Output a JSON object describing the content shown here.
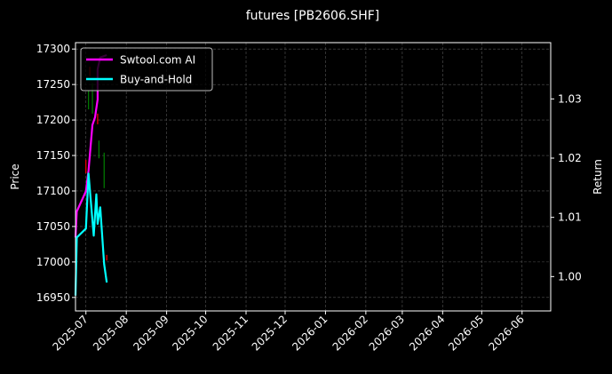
{
  "chart_data": {
    "type": "line",
    "title": "futures [PB2606.SHF]",
    "xlabel": "",
    "ylabel_left": "Price",
    "ylabel_right": "Return",
    "xlim": [
      "2025-06-23",
      "2026-06-23"
    ],
    "ylim_left": [
      16931,
      17309
    ],
    "ylim_right": [
      0.9942,
      1.0395
    ],
    "x_ticks": [
      "2025-07",
      "2025-08",
      "2025-09",
      "2025-10",
      "2025-11",
      "2025-12",
      "2026-01",
      "2026-02",
      "2026-03",
      "2026-04",
      "2026-05",
      "2026-06"
    ],
    "y_ticks_left": [
      16950,
      17000,
      17050,
      17100,
      17150,
      17200,
      17250,
      17300
    ],
    "y_ticks_right": [
      1.0,
      1.01,
      1.02,
      1.03
    ],
    "grid": true,
    "legend_placement": "top-left",
    "candles": [
      {
        "date": "2025-07-01",
        "low": 17125,
        "high": 17144,
        "color": "#ff0000"
      },
      {
        "date": "2025-07-03",
        "low": 17215,
        "high": 17241,
        "color": "#008000"
      },
      {
        "date": "2025-07-04",
        "low": 17262,
        "high": 17275,
        "color": "#ff0000"
      },
      {
        "date": "2025-07-06",
        "low": 17209,
        "high": 17252,
        "color": "#008000"
      },
      {
        "date": "2025-07-10",
        "low": 17194,
        "high": 17209,
        "color": "#ff0000"
      },
      {
        "date": "2025-07-11",
        "low": 17146,
        "high": 17171,
        "color": "#008000"
      },
      {
        "date": "2025-07-15",
        "low": 17104,
        "high": 17154,
        "color": "#008000"
      },
      {
        "date": "2025-07-17",
        "low": 17002,
        "high": 17010,
        "color": "#ff0000"
      }
    ],
    "series": [
      {
        "name": "Swtool.com AI",
        "color": "#ff00ff",
        "axis": "right",
        "x": [
          "2025-06-23",
          "2025-06-24",
          "2025-07-01",
          "2025-07-03",
          "2025-07-06",
          "2025-07-08",
          "2025-07-10",
          "2025-07-10",
          "2025-07-12",
          "2025-07-17"
        ],
        "values": [
          1.0066,
          1.011,
          1.0144,
          1.0179,
          1.0256,
          1.0269,
          1.0299,
          1.035,
          1.037,
          1.0374
        ]
      },
      {
        "name": "Buy-and-Hold",
        "color": "#00ffff",
        "axis": "right",
        "x": [
          "2025-06-23",
          "2025-06-24",
          "2025-07-01",
          "2025-07-03",
          "2025-07-07",
          "2025-07-09",
          "2025-07-10",
          "2025-07-12",
          "2025-07-15",
          "2025-07-17"
        ],
        "values": [
          0.9968,
          1.0066,
          1.0081,
          1.0174,
          1.0069,
          1.0139,
          1.0089,
          1.0117,
          1.0021,
          0.999
        ]
      }
    ]
  }
}
